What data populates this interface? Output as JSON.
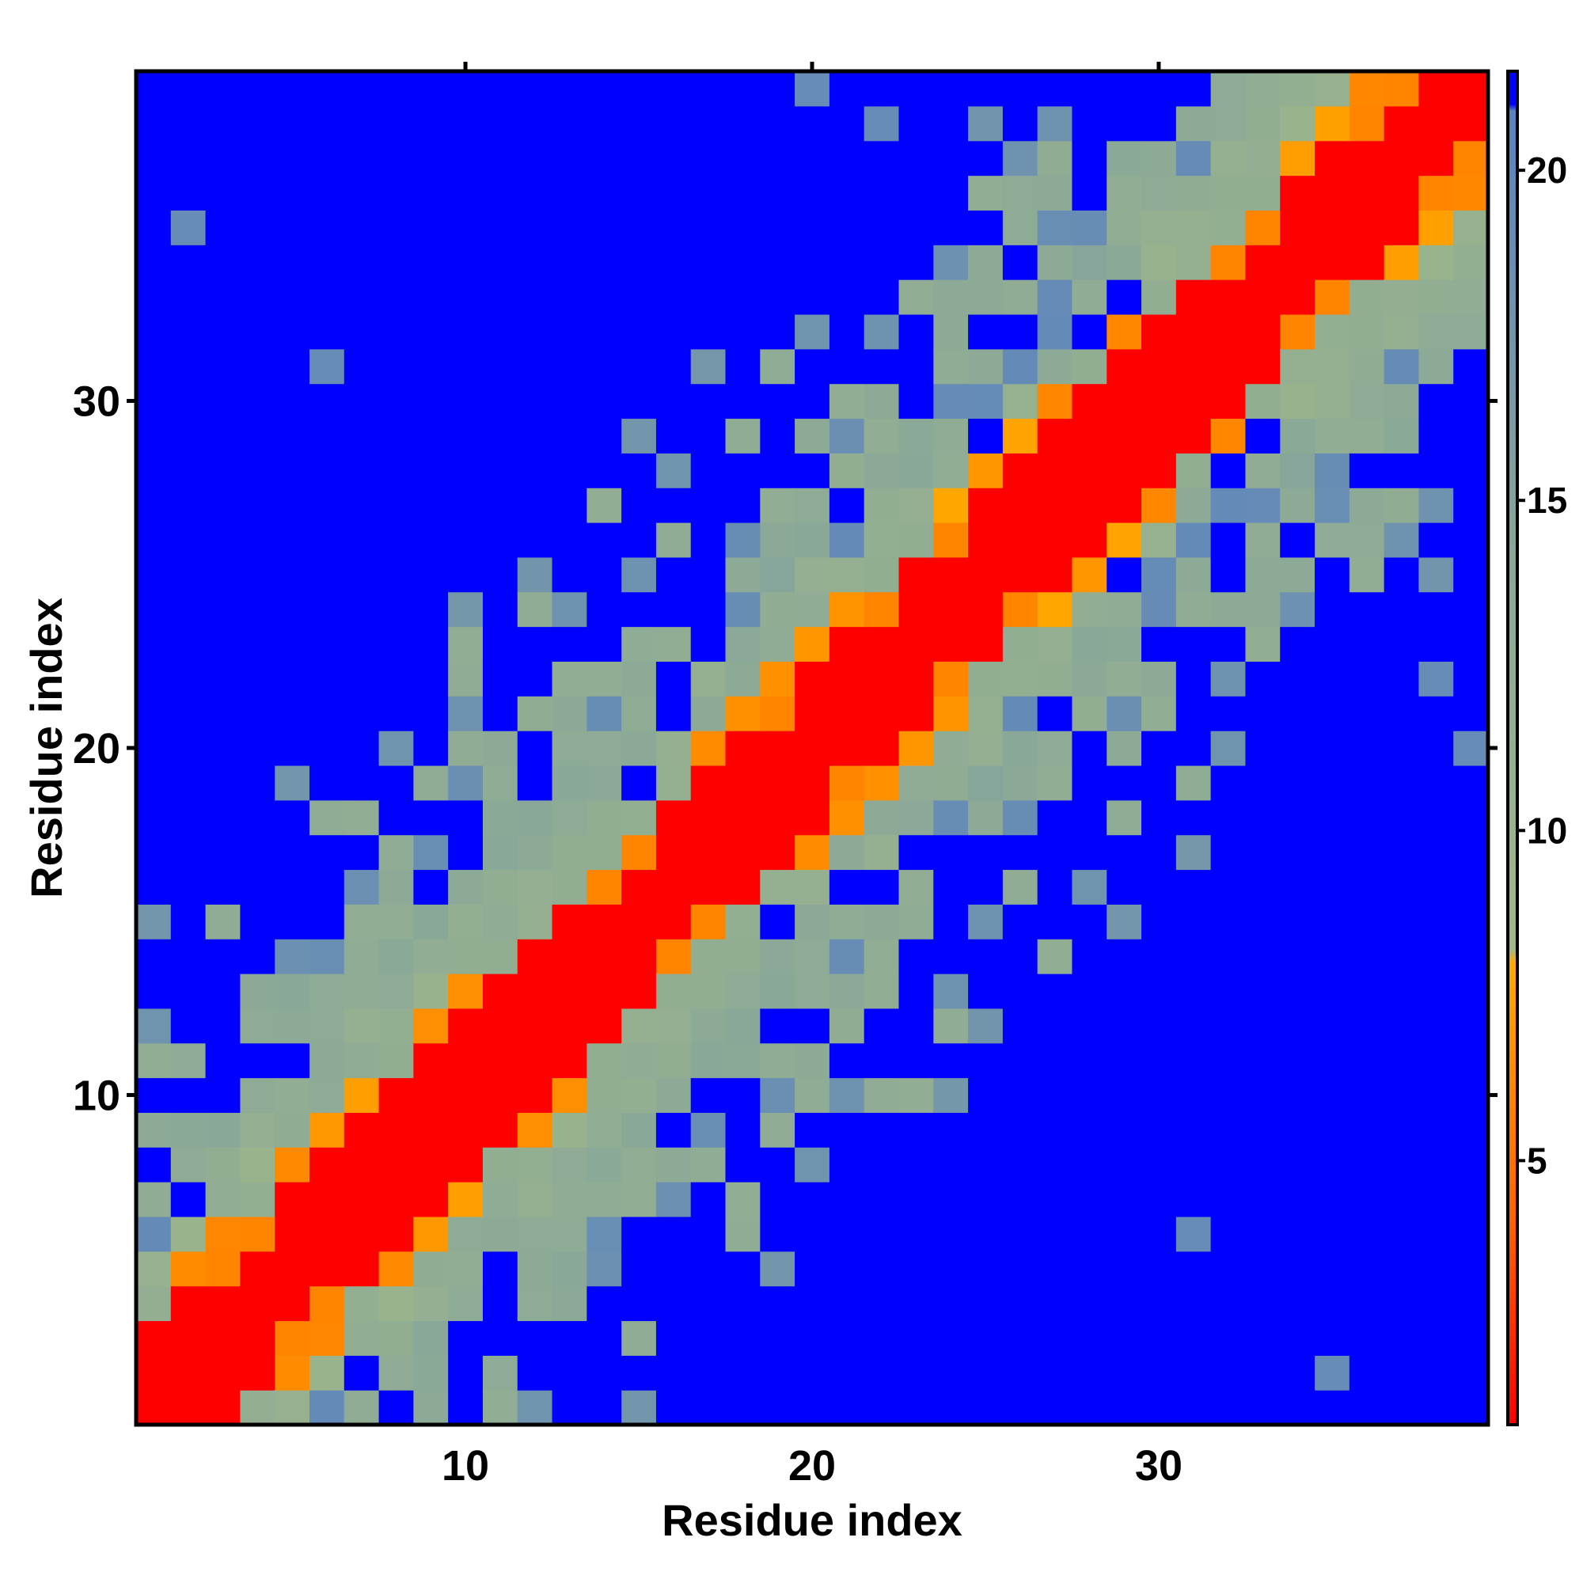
{
  "chart_data": {
    "type": "heatmap",
    "title": "",
    "xlabel": "Residue index",
    "ylabel": "Residue index",
    "n": 39,
    "xlim": [
      1,
      39
    ],
    "ylim": [
      1,
      39
    ],
    "x_ticks": [
      10,
      20,
      30
    ],
    "y_ticks": [
      10,
      20,
      30
    ],
    "x_tick_labels": [
      "10",
      "20",
      "30"
    ],
    "y_tick_labels": [
      "10",
      "20",
      "30"
    ],
    "colorbar": {
      "range": [
        1,
        21.5
      ],
      "ticks": [
        5,
        10,
        15,
        20
      ],
      "tick_labels": [
        "5",
        "10",
        "15",
        "20"
      ],
      "stops": [
        {
          "value": 1,
          "color": "#ff0000"
        },
        {
          "value": 4,
          "color": "#ff6000"
        },
        {
          "value": 8,
          "color": "#ffaa00"
        },
        {
          "value": 8.2,
          "color": "#a0b888"
        },
        {
          "value": 14,
          "color": "#8aa898"
        },
        {
          "value": 20.9,
          "color": "#5a82c0"
        },
        {
          "value": 21,
          "color": "#0000ff"
        }
      ]
    },
    "model": {
      "description_values": "distance-map values in colorbar units; cell (i,j) symmetric",
      "band_values_by_separation": [
        1,
        1,
        2.5,
        7,
        10,
        11,
        12,
        13,
        14,
        15,
        16,
        17,
        18,
        19,
        20
      ],
      "background_value": 21.5
    }
  }
}
